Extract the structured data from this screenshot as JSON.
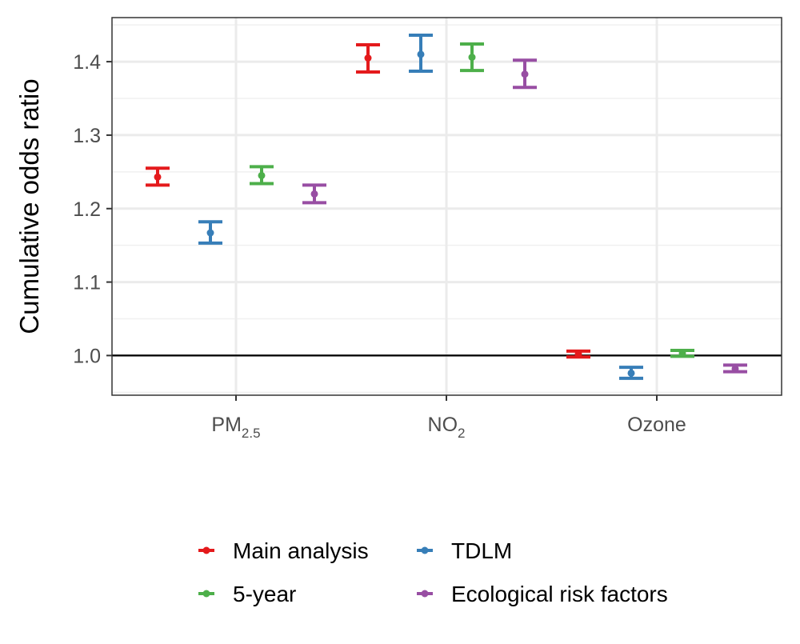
{
  "chart_data": {
    "type": "errorbar",
    "ylabel": "Cumulative odds ratio",
    "xlabel": "",
    "ylim": [
      0.946,
      1.46
    ],
    "yticks": [
      1.0,
      1.1,
      1.2,
      1.3,
      1.4
    ],
    "ytick_labels": [
      "1.0",
      "1.1",
      "1.2",
      "1.3",
      "1.4"
    ],
    "reference_line": 1.0,
    "grid": true,
    "legend_position": "bottom",
    "categories": [
      {
        "main": "PM",
        "sub": "2.5"
      },
      {
        "main": "NO",
        "sub": "2"
      },
      {
        "main": "Ozone",
        "sub": ""
      }
    ],
    "series": [
      {
        "name": "Main analysis",
        "color": "#e41a1c",
        "points": [
          {
            "estimate": 1.243,
            "lower": 1.232,
            "upper": 1.255
          },
          {
            "estimate": 1.405,
            "lower": 1.386,
            "upper": 1.423
          },
          {
            "estimate": 1.002,
            "lower": 0.998,
            "upper": 1.006
          }
        ]
      },
      {
        "name": "TDLM",
        "color": "#377eb8",
        "points": [
          {
            "estimate": 1.167,
            "lower": 1.153,
            "upper": 1.182
          },
          {
            "estimate": 1.41,
            "lower": 1.387,
            "upper": 1.436
          },
          {
            "estimate": 0.976,
            "lower": 0.969,
            "upper": 0.984
          }
        ]
      },
      {
        "name": "5-year",
        "color": "#4daf4a",
        "points": [
          {
            "estimate": 1.245,
            "lower": 1.234,
            "upper": 1.257
          },
          {
            "estimate": 1.406,
            "lower": 1.388,
            "upper": 1.424
          },
          {
            "estimate": 1.003,
            "lower": 0.999,
            "upper": 1.007
          }
        ]
      },
      {
        "name": "Ecological risk factors",
        "color": "#984ea3",
        "points": [
          {
            "estimate": 1.22,
            "lower": 1.208,
            "upper": 1.232
          },
          {
            "estimate": 1.383,
            "lower": 1.365,
            "upper": 1.402
          },
          {
            "estimate": 0.982,
            "lower": 0.978,
            "upper": 0.987
          }
        ]
      }
    ],
    "legend_order": [
      "Main analysis",
      "TDLM",
      "5-year",
      "Ecological risk factors"
    ]
  }
}
